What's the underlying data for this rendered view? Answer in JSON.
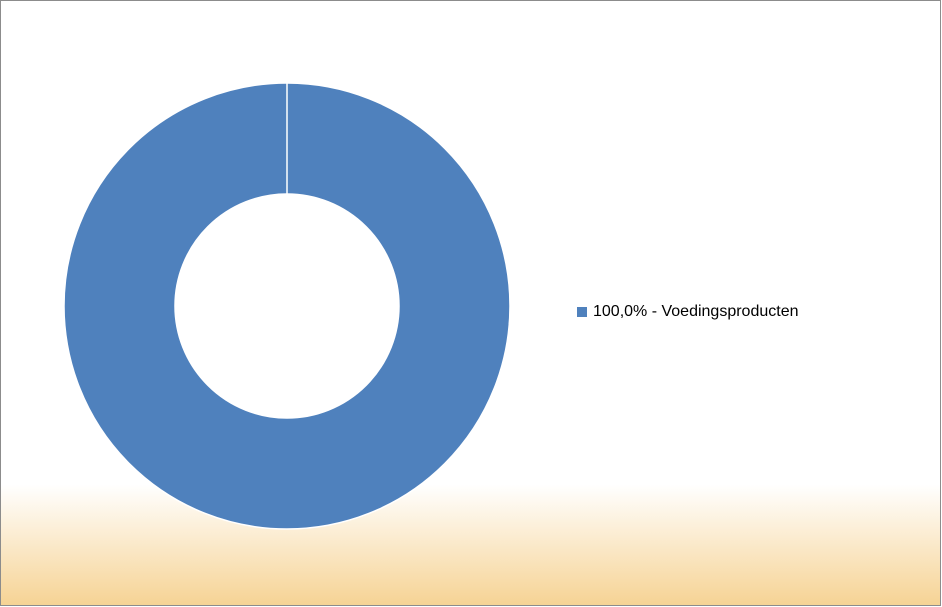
{
  "chart_data": {
    "type": "donut",
    "categories": [
      "100,0% - Voedingsproducten"
    ],
    "values": [
      100
    ],
    "colors": [
      "#4f81bd"
    ],
    "legend": "right"
  }
}
